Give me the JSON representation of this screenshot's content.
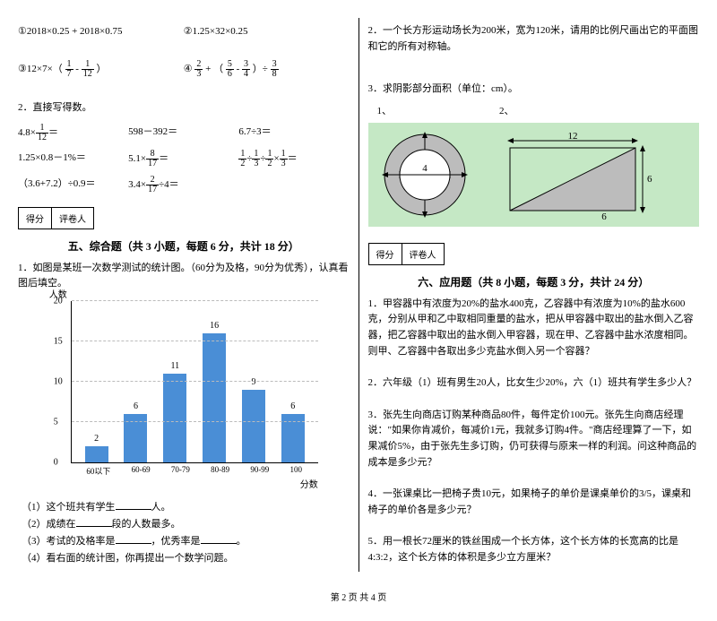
{
  "left": {
    "expr_row1": {
      "a": "①2018×0.25 + 2018×0.75",
      "b": "②1.25×32×0.25"
    },
    "expr_row2": {
      "a_pre": "③12×7×（",
      "a_f1": {
        "n": "1",
        "d": "7"
      },
      "a_mid": " - ",
      "a_f2": {
        "n": "1",
        "d": "12"
      },
      "a_post": "）",
      "b_pre": "④",
      "b_f1": {
        "n": "2",
        "d": "3"
      },
      "b_mid1": " + （",
      "b_f2": {
        "n": "5",
        "d": "6"
      },
      "b_mid2": " - ",
      "b_f3": {
        "n": "3",
        "d": "4"
      },
      "b_mid3": "）÷",
      "b_f4": {
        "n": "3",
        "d": "8"
      }
    },
    "q2_title": "2．直接写得数。",
    "mental_rows": [
      {
        "a_pre": "4.8×",
        "a_f": {
          "n": "1",
          "d": "12"
        },
        "a_post": "＝",
        "b": "598－392＝",
        "c": "6.7÷3＝"
      },
      {
        "a": "1.25×0.8－1%＝",
        "b_pre": "5.1×",
        "b_f": {
          "n": "8",
          "d": "17"
        },
        "b_post": "＝",
        "c_f1": {
          "n": "1",
          "d": "2"
        },
        "c_d1": "÷",
        "c_f2": {
          "n": "1",
          "d": "3"
        },
        "c_d2": "÷",
        "c_f3": {
          "n": "1",
          "d": "2"
        },
        "c_d3": "×",
        "c_f4": {
          "n": "1",
          "d": "3"
        },
        "c_post": "＝"
      },
      {
        "a": "（3.6+7.2）÷0.9＝",
        "b_pre": "3.4×",
        "b_f": {
          "n": "2",
          "d": "17"
        },
        "b_post": "÷4＝",
        "c": ""
      }
    ],
    "score_labels": {
      "a": "得分",
      "b": "评卷人"
    },
    "section5_title": "五、综合题（共 3 小题，每题 6 分，共计 18 分）",
    "q5_1": "1．如图是某班一次数学测试的统计图。（60分为及格，90分为优秀），认真看图后填空。",
    "chart": {
      "y_title": "人数",
      "y_max": 20,
      "y_ticks": [
        0,
        5,
        10,
        15,
        20
      ],
      "bars": [
        {
          "label": "60以下",
          "value": 2,
          "color": "#4a8ed6"
        },
        {
          "label": "60-69",
          "value": 6,
          "color": "#4a8ed6"
        },
        {
          "label": "70-79",
          "value": 11,
          "color": "#4a8ed6"
        },
        {
          "label": "80-89",
          "value": 16,
          "color": "#4a8ed6"
        },
        {
          "label": "90-99",
          "value": 9,
          "color": "#4a8ed6"
        },
        {
          "label": "100",
          "value": 6,
          "color": "#4a8ed6"
        }
      ],
      "x_title": "分数"
    },
    "q5_subs": {
      "s1_a": "（1）这个班共有学生",
      "s1_b": "人。",
      "s2_a": "（2）成绩在",
      "s2_b": "段的人数最多。",
      "s3_a": "（3）考试的及格率是",
      "s3_b": "，优秀率是",
      "s3_c": "。",
      "s4": "（4）看右面的统计图，你再提出一个数学问题。"
    }
  },
  "right": {
    "q2": "2．一个长方形运动场长为200米，宽为120米，请用的比例尺画出它的平面图和它的所有对称轴。",
    "q3": "3．求阴影部分面积（单位：cm）。",
    "fig_labels": {
      "l1": "1、",
      "l2": "2、"
    },
    "fig": {
      "circle_d": "4",
      "ring_bg": "#ffffff",
      "ring_arrows": "#000000",
      "tri_top": "12",
      "tri_right": "6",
      "tri_bottom": "6",
      "tri_fill": "#bcbcbc"
    },
    "score_labels": {
      "a": "得分",
      "b": "评卷人"
    },
    "section6_title": "六、应用题（共 8 小题，每题 3 分，共计 24 分）",
    "apps": {
      "a1": "1．甲容器中有浓度为20%的盐水400克，乙容器中有浓度为10%的盐水600克，分别从甲和乙中取相同重量的盐水，把从甲容器中取出的盐水倒入乙容器，把乙容器中取出的盐水倒入甲容器，现在甲、乙容器中盐水浓度相同。则甲、乙容器中各取出多少克盐水倒入另一个容器？",
      "a2": "2．六年级（1）班有男生20人，比女生少20%，六（1）班共有学生多少人？",
      "a3": "3．张先生向商店订购某种商品80件，每件定价100元。张先生向商店经理说：\"如果你肯减价，每减价1元，我就多订购4件。\"商店经理算了一下，如果减价5%，由于张先生多订购，仍可获得与原来一样的利润。问这种商品的成本是多少元？",
      "a4": "4．一张课桌比一把椅子贵10元，如果椅子的单价是课桌单价的3/5，课桌和椅子的单价各是多少元？",
      "a5": "5．用一根长72厘米的铁丝围成一个长方体，这个长方体的长宽高的比是4:3:2，这个长方体的体积是多少立方厘米？"
    }
  },
  "footer": "第 2 页 共 4 页"
}
